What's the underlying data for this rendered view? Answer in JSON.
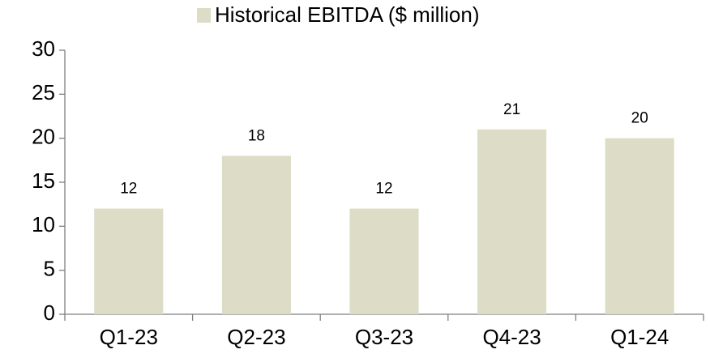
{
  "chart_data": {
    "type": "bar",
    "categories": [
      "Q1-23",
      "Q2-23",
      "Q3-23",
      "Q4-23",
      "Q1-24"
    ],
    "series": [
      {
        "name": "Historical EBITDA ($ million)",
        "color": "#dddcc6",
        "values": [
          12,
          18,
          12,
          21,
          20
        ]
      }
    ],
    "ylim": [
      0,
      30
    ],
    "yticks": [
      0,
      5,
      10,
      15,
      20,
      25,
      30
    ],
    "grid": false,
    "legend": "top"
  }
}
